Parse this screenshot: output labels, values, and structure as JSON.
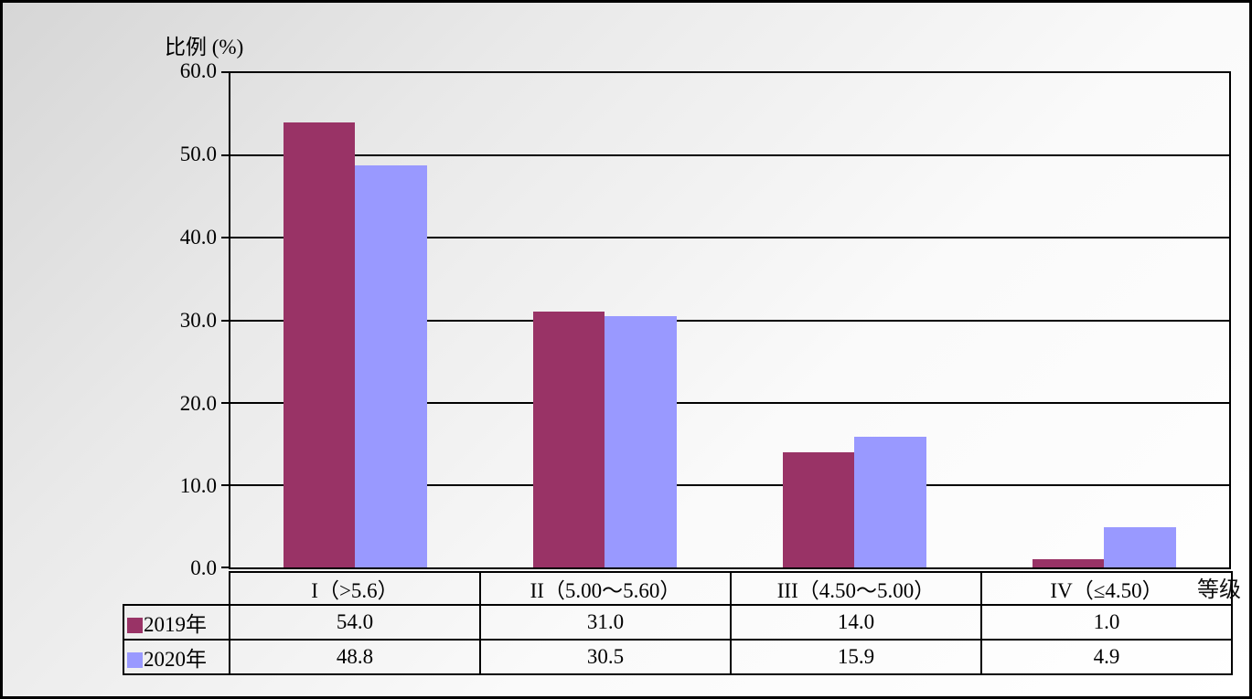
{
  "chart": {
    "y_axis_title": "比例 (%)",
    "x_axis_title": "等级",
    "y_ticks": [
      "60.0",
      "50.0",
      "40.0",
      "30.0",
      "20.0",
      "10.0",
      "0.0"
    ],
    "frame_color": "#000000",
    "background_start": "#d6d6d6",
    "background_end": "#ffffff"
  },
  "chart_data": {
    "type": "bar",
    "title": "",
    "xlabel": "等级",
    "ylabel": "比例 (%)",
    "categories": [
      "I（>5.6）",
      "II（5.00～5.60）",
      "III（4.50～5.00）",
      "IV（≤4.50）"
    ],
    "series": [
      {
        "name": "2019年",
        "color": "#993366",
        "values": [
          54.0,
          31.0,
          14.0,
          1.0
        ]
      },
      {
        "name": "2020年",
        "color": "#9999FF",
        "values": [
          48.8,
          30.5,
          15.9,
          4.9
        ]
      }
    ],
    "ylim": [
      0,
      60
    ],
    "ytick_step": 10,
    "grid": true,
    "gridline_color": "#000000",
    "legend_position": "table-left"
  },
  "table": {
    "header": [
      "I（>5.6）",
      "II（5.00～5.60）",
      "III（4.50～5.00）",
      "IV（≤4.50）"
    ],
    "rows": [
      {
        "legend": "2019年",
        "values": [
          "54.0",
          "31.0",
          "14.0",
          "1.0"
        ]
      },
      {
        "legend": "2020年",
        "values": [
          "48.8",
          "30.5",
          "15.9",
          "4.9"
        ]
      }
    ]
  }
}
